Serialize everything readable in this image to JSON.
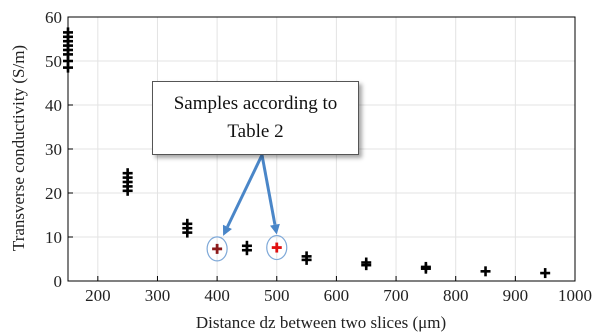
{
  "chart_data": {
    "type": "scatter",
    "xlabel": "Distance dz between two slices (μm)",
    "ylabel": "Transverse conductivity (S/m)",
    "xlim": [
      150,
      1000
    ],
    "ylim": [
      0,
      60
    ],
    "xticks": [
      200,
      300,
      400,
      500,
      600,
      700,
      800,
      900,
      1000
    ],
    "yticks": [
      0,
      10,
      20,
      30,
      40,
      50,
      60
    ],
    "grid": true,
    "marker": "plus",
    "points": [
      {
        "x": 150,
        "y": 48.5
      },
      {
        "x": 150,
        "y": 50.0
      },
      {
        "x": 150,
        "y": 51.5
      },
      {
        "x": 150,
        "y": 52.5
      },
      {
        "x": 150,
        "y": 53.5
      },
      {
        "x": 150,
        "y": 54.5
      },
      {
        "x": 150,
        "y": 55.5
      },
      {
        "x": 150,
        "y": 56.5
      },
      {
        "x": 250,
        "y": 20.5
      },
      {
        "x": 250,
        "y": 21.5
      },
      {
        "x": 250,
        "y": 22.5
      },
      {
        "x": 250,
        "y": 23.5
      },
      {
        "x": 250,
        "y": 24.5
      },
      {
        "x": 350,
        "y": 11.0
      },
      {
        "x": 350,
        "y": 12.0
      },
      {
        "x": 350,
        "y": 13.0
      },
      {
        "x": 450,
        "y": 7.0
      },
      {
        "x": 450,
        "y": 8.0
      },
      {
        "x": 550,
        "y": 4.8
      },
      {
        "x": 550,
        "y": 5.6
      },
      {
        "x": 650,
        "y": 3.6
      },
      {
        "x": 650,
        "y": 4.2
      },
      {
        "x": 750,
        "y": 2.8
      },
      {
        "x": 750,
        "y": 3.2
      },
      {
        "x": 850,
        "y": 2.2
      },
      {
        "x": 950,
        "y": 1.8
      }
    ],
    "highlighted": [
      {
        "x": 400,
        "y": 7.3,
        "color": "#8b1a1a"
      },
      {
        "x": 500,
        "y": 7.6,
        "color": "#e01010"
      }
    ],
    "annotation": {
      "line1": "Samples according to",
      "line2": "Table 2",
      "arrow_color": "#4a86c8"
    }
  }
}
